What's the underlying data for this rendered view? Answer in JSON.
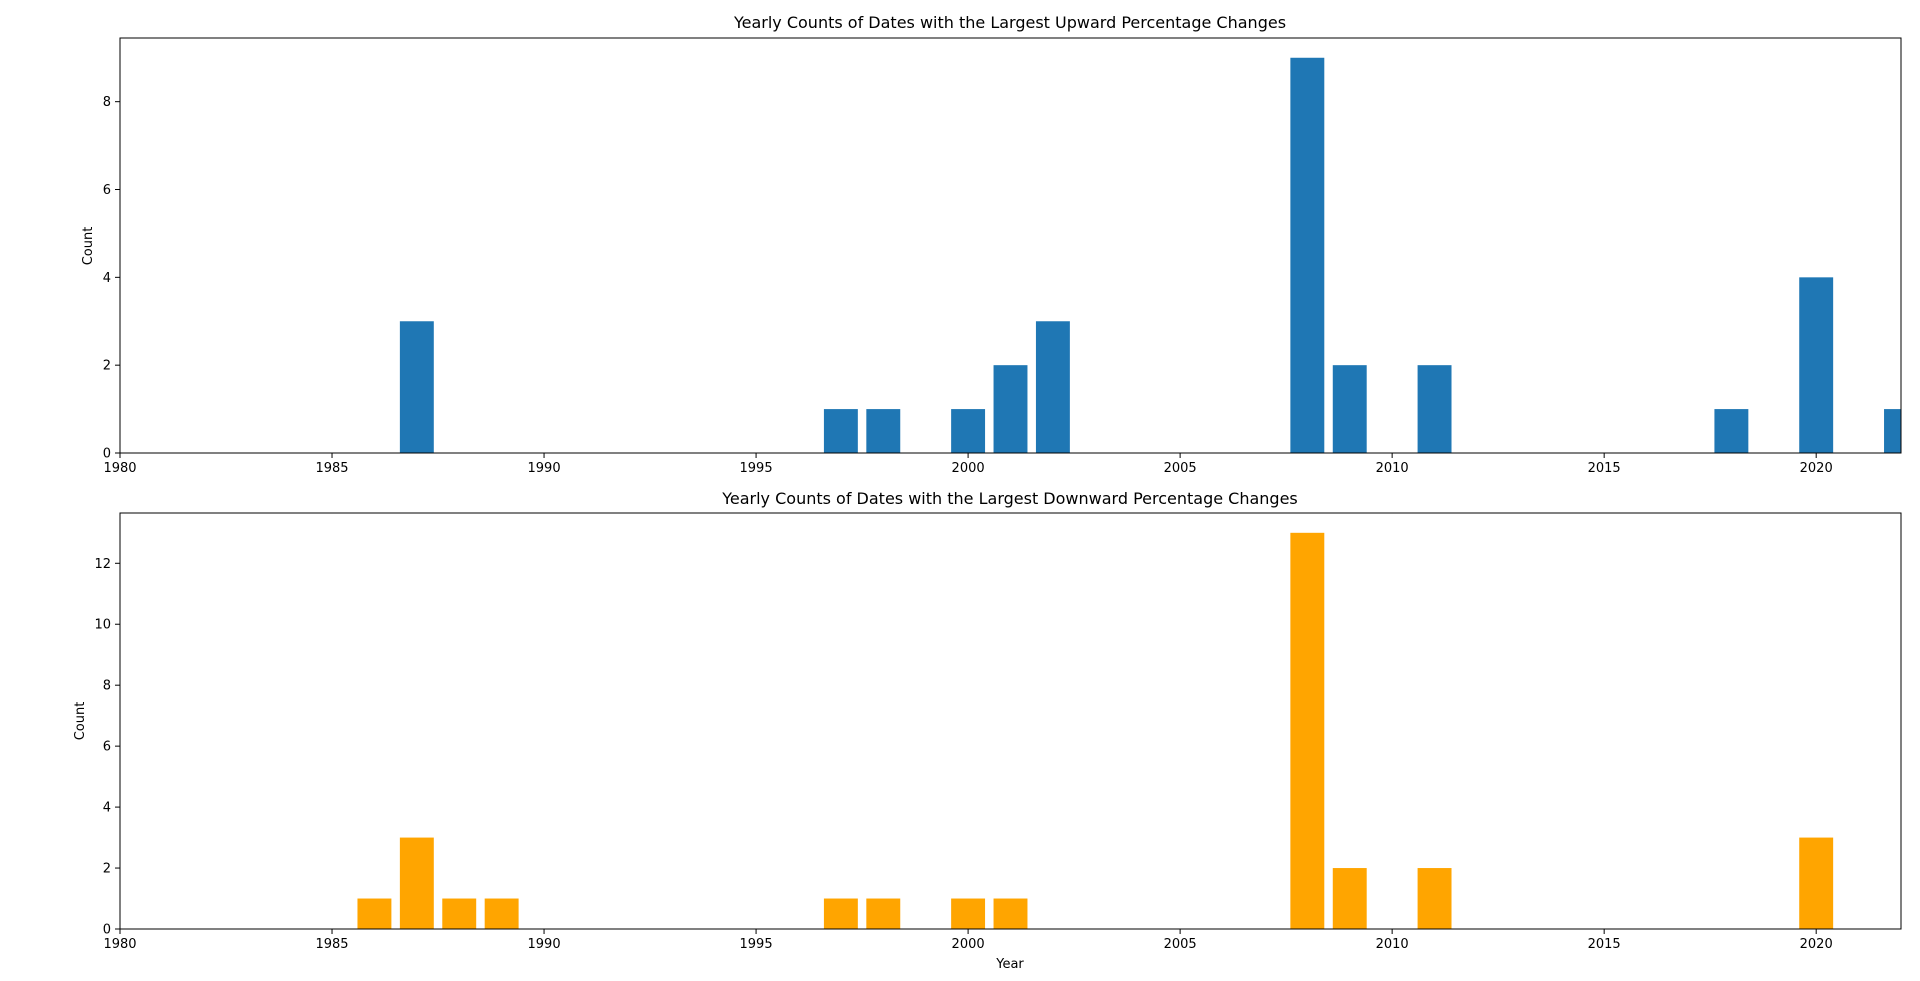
{
  "chart_data": [
    {
      "type": "bar",
      "title": "Yearly Counts of Dates with the Largest Upward Percentage Changes",
      "xlabel": "",
      "ylabel": "Count",
      "xlim": [
        1980,
        2022
      ],
      "ylim": [
        0,
        9.45
      ],
      "xticks": [
        1980,
        1985,
        1990,
        1995,
        2000,
        2005,
        2010,
        2015,
        2020
      ],
      "yticks": [
        0,
        2,
        4,
        6,
        8
      ],
      "color": "#1f77b4",
      "grid": false,
      "x": [
        1987,
        1997,
        1998,
        2000,
        2001,
        2002,
        2008,
        2009,
        2011,
        2018,
        2020,
        2022
      ],
      "values": [
        3,
        1,
        1,
        1,
        2,
        3,
        9,
        2,
        2,
        1,
        4,
        1
      ]
    },
    {
      "type": "bar",
      "title": "Yearly Counts of Dates with the Largest Downward Percentage Changes",
      "xlabel": "Year",
      "ylabel": "Count",
      "xlim": [
        1980,
        2022
      ],
      "ylim": [
        0,
        13.65
      ],
      "xticks": [
        1980,
        1985,
        1990,
        1995,
        2000,
        2005,
        2010,
        2015,
        2020
      ],
      "yticks": [
        0,
        2,
        4,
        6,
        8,
        10,
        12
      ],
      "color": "#ffa500",
      "grid": false,
      "x": [
        1986,
        1987,
        1988,
        1989,
        1997,
        1998,
        2000,
        2001,
        2008,
        2009,
        2011,
        2020
      ],
      "values": [
        1,
        3,
        1,
        1,
        1,
        1,
        1,
        1,
        13,
        2,
        2,
        3
      ]
    }
  ]
}
